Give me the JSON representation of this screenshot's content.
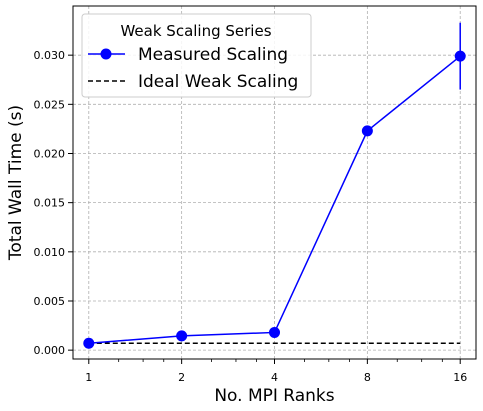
{
  "chart_data": {
    "type": "line",
    "xlabel": "No. MPI Ranks",
    "ylabel": "Total Wall Time (s)",
    "x_scale": "log2",
    "x": [
      1,
      2,
      4,
      8,
      16
    ],
    "x_tick_labels": [
      "1",
      "2",
      "4",
      "8",
      "16"
    ],
    "ylim": [
      -0.0009,
      0.035
    ],
    "y_ticks": [
      0.0,
      0.005,
      0.01,
      0.015,
      0.02,
      0.025,
      0.03
    ],
    "y_tick_labels": [
      "0.000",
      "0.005",
      "0.010",
      "0.015",
      "0.020",
      "0.025",
      "0.030"
    ],
    "grid": true,
    "legend": {
      "title": "Weak Scaling Series",
      "placement": "top-left"
    },
    "series": [
      {
        "name": "Measured Scaling",
        "color": "#0000ff",
        "marker": "circle",
        "line_style": "solid",
        "values": [
          0.0007,
          0.00145,
          0.0018,
          0.0223,
          0.0299
        ],
        "error": [
          5e-05,
          0.0001,
          0.0001,
          0.0005,
          0.0034
        ]
      },
      {
        "name": "Ideal Weak Scaling",
        "color": "#000000",
        "marker": "none",
        "line_style": "dashed",
        "values": [
          0.0007,
          0.0007,
          0.0007,
          0.0007,
          0.0007
        ]
      }
    ]
  }
}
